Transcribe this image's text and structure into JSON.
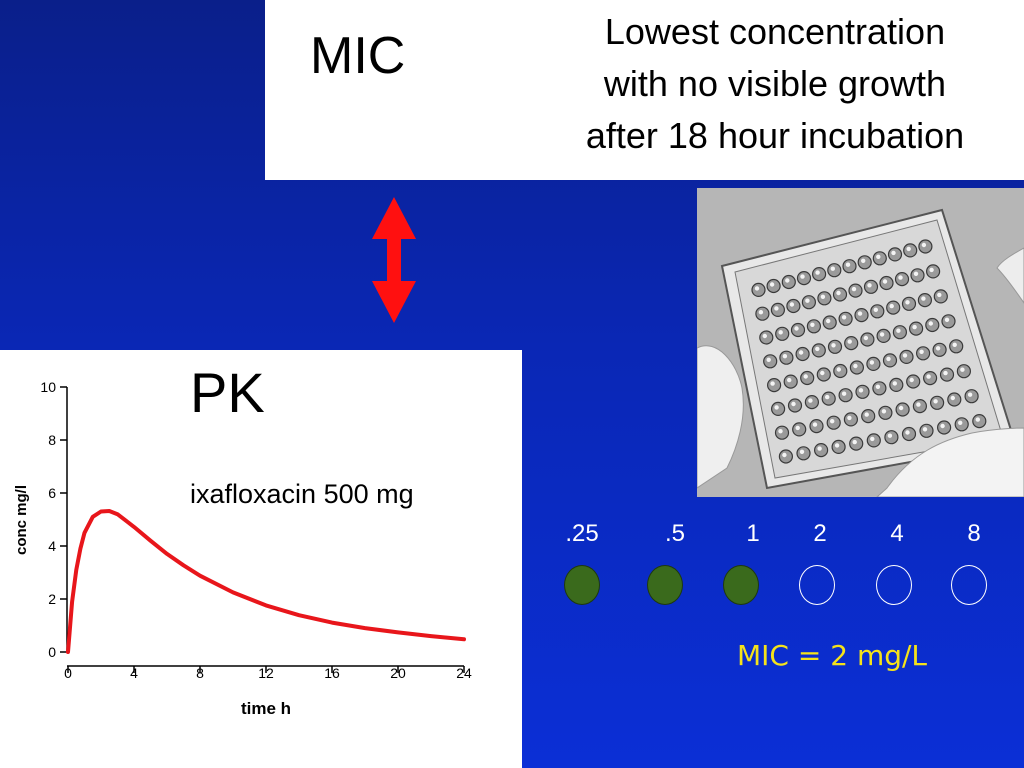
{
  "mic_section": {
    "title": "MIC",
    "definition_lines": [
      "Lowest concentration",
      "with no visible growth",
      "after 18 hour incubation"
    ]
  },
  "pk_section": {
    "title": "PK",
    "drug_label": "ixafloxacin 500 mg"
  },
  "well_row": {
    "concentrations": [
      ".25",
      ".5",
      "1",
      "2",
      "4",
      "8"
    ],
    "growth": [
      true,
      true,
      true,
      false,
      false,
      false
    ],
    "growth_color": "#3a6a1c",
    "mic_result": "MIC = 2 mg/L",
    "result_color": "#f5e21a"
  },
  "arrow": {
    "icon": "double-arrow-vertical-icon",
    "color": "#ff1010"
  },
  "chart_data": {
    "type": "line",
    "xlabel": "time h",
    "ylabel": "conc mg/l",
    "xlim": [
      0,
      24
    ],
    "ylim": [
      0,
      10
    ],
    "xticks": [
      0,
      4,
      8,
      12,
      16,
      20,
      24
    ],
    "yticks": [
      0,
      2,
      4,
      6,
      8,
      10
    ],
    "grid": false,
    "line_color": "#e8161b",
    "series": [
      {
        "x": [
          0,
          0.25,
          0.5,
          0.75,
          1,
          1.5,
          2,
          2.5,
          3,
          4,
          5,
          6,
          7,
          8,
          10,
          12,
          14,
          16,
          18,
          20,
          22,
          24
        ],
        "y": [
          0,
          1.9,
          3.1,
          3.9,
          4.5,
          5.1,
          5.3,
          5.32,
          5.2,
          4.72,
          4.2,
          3.7,
          3.27,
          2.88,
          2.25,
          1.76,
          1.39,
          1.11,
          0.9,
          0.74,
          0.6,
          0.48
        ]
      }
    ]
  }
}
